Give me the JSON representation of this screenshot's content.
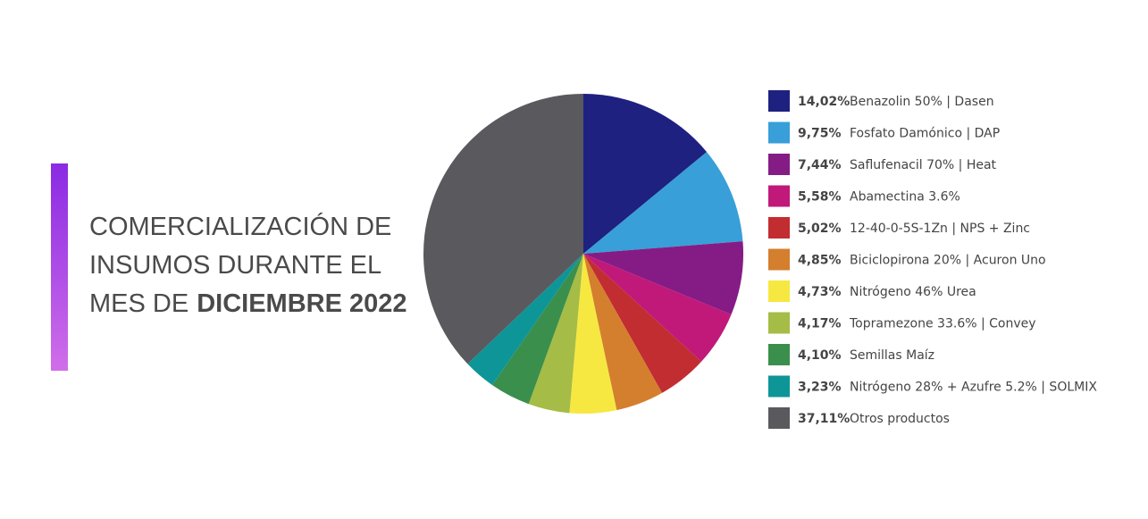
{
  "chart_data": {
    "type": "pie",
    "title": [
      "COMERCIALIZACIÓN DE",
      "INSUMOS DURANTE EL",
      "MES DE"
    ],
    "title_bold": "DICIEMBRE 2022",
    "categories": [
      "Benazolin 50% | Dasen",
      "Fosfato Damónico | DAP",
      "Saflufenacil 70% | Heat",
      "Abamectina 3.6%",
      "12-40-0-5S-1Zn | NPS + Zinc",
      "Biciclopirona 20% | Acuron Uno",
      "Nitrógeno 46% Urea",
      "Topramezone 33.6% | Convey",
      "Semillas Maíz",
      "Nitrógeno 28% + Azufre 5.2% | SOLMIX",
      "Otros productos"
    ],
    "values": [
      14.02,
      9.75,
      7.44,
      5.58,
      5.02,
      4.85,
      4.73,
      4.17,
      4.1,
      3.23,
      37.11
    ],
    "value_labels": [
      "14,02%",
      "9,75%",
      "7,44%",
      "5,58%",
      "5,02%",
      "4,85%",
      "4,73%",
      "4,17%",
      "4,10%",
      "3,23%",
      "37,11%"
    ],
    "colors": [
      "#1e2180",
      "#389fd8",
      "#851c85",
      "#c0197a",
      "#c22d32",
      "#d47f2e",
      "#f6e841",
      "#a5bc46",
      "#3a8f4c",
      "#0e9597",
      "#5a595e"
    ]
  }
}
